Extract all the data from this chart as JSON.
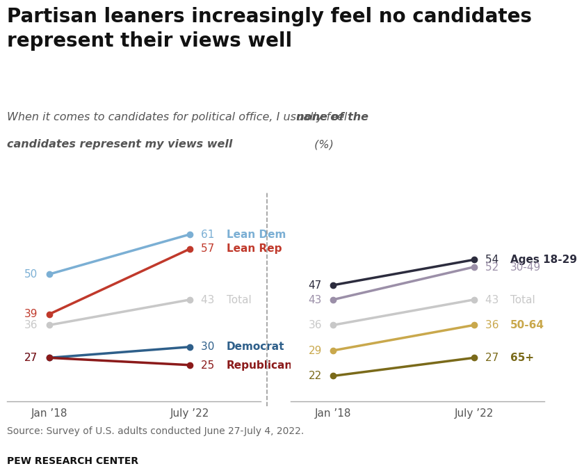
{
  "title": "Partisan leaners increasingly feel no candidates\nrepresent their views well",
  "subtitle_plain": "When it comes to candidates for political office, I usually feel ",
  "subtitle_bold": "none of the\ncandidates represent my views well",
  "subtitle_end": " (%)",
  "source": "Source: Survey of U.S. adults conducted June 27-July 4, 2022.",
  "publisher": "PEW RESEARCH CENTER",
  "x_labels": [
    "Jan ’18",
    "July ’22"
  ],
  "left_panel": {
    "series": [
      {
        "label": "Lean Dem",
        "color": "#7bafd4",
        "values": [
          50,
          61
        ],
        "label_color": "#7bafd4",
        "bold": true
      },
      {
        "label": "Lean Rep",
        "color": "#c0392b",
        "values": [
          39,
          57
        ],
        "label_color": "#c0392b",
        "bold": true
      },
      {
        "label": "Total",
        "color": "#c8c8c8",
        "values": [
          36,
          43
        ],
        "label_color": "#c8c8c8",
        "bold": false
      },
      {
        "label": "Democrat",
        "color": "#2e5f8a",
        "values": [
          27,
          30
        ],
        "label_color": "#2e5f8a",
        "bold": true
      },
      {
        "label": "Republican",
        "color": "#8b1a1a",
        "values": [
          27,
          25
        ],
        "label_color": "#8b1a1a",
        "bold": true
      }
    ]
  },
  "right_panel": {
    "series": [
      {
        "label": "Ages 18-29",
        "color": "#2c2c3e",
        "values": [
          47,
          54
        ],
        "label_color": "#2c2c3e",
        "bold": true
      },
      {
        "label": "30-49",
        "color": "#9b8fa8",
        "values": [
          43,
          52
        ],
        "label_color": "#9b8fa8",
        "bold": false
      },
      {
        "label": "Total",
        "color": "#c8c8c8",
        "values": [
          36,
          43
        ],
        "label_color": "#c8c8c8",
        "bold": false
      },
      {
        "label": "50-64",
        "color": "#c9a84c",
        "values": [
          29,
          36
        ],
        "label_color": "#c9a84c",
        "bold": true
      },
      {
        "label": "65+",
        "color": "#7a6a1a",
        "values": [
          22,
          27
        ],
        "label_color": "#7a6a1a",
        "bold": true
      }
    ]
  },
  "ylim": [
    15,
    70
  ],
  "background_color": "#ffffff",
  "title_fontsize": 20,
  "subtitle_fontsize": 11.5,
  "label_fontsize": 11,
  "tick_fontsize": 11,
  "source_fontsize": 10
}
